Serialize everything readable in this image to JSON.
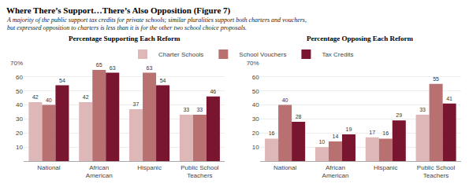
{
  "title": "Where There’s Support…There’s Also Opposition (Figure 7)",
  "subtitle": "A majority of the public support tax credits for private schools; similar pluralities support both charters and vouchers,\nbut expressed opposition to charters is less than it is for the other two school choice proposals.",
  "chart_data": [
    {
      "type": "bar",
      "title": "Percentage Supporting Each Reform",
      "categories": [
        "National",
        "African\nAmerican",
        "Hispanic",
        "Public School\nTeachers"
      ],
      "series": [
        {
          "name": "Charter Schools",
          "color": "#deb8b8",
          "values": [
            42,
            42,
            37,
            33
          ]
        },
        {
          "name": "School Vouchers",
          "color": "#b87070",
          "values": [
            40,
            65,
            63,
            33
          ]
        },
        {
          "name": "Tax Credits",
          "color": "#7a1530",
          "values": [
            54,
            63,
            54,
            46
          ]
        }
      ],
      "ylim": [
        0,
        70
      ],
      "yticks": [
        10,
        20,
        30,
        40,
        50,
        60,
        {
          "value": 70,
          "label": "70%"
        }
      ],
      "grid": true,
      "data_labels": true,
      "legend": "top"
    },
    {
      "type": "bar",
      "title": "Percentage Opposing Each Reform",
      "categories": [
        "National",
        "African\nAmerican",
        "Hispanic",
        "Public School\nTeachers"
      ],
      "series": [
        {
          "name": "Charter Schools",
          "color": "#deb8b8",
          "values": [
            16,
            10,
            17,
            33
          ]
        },
        {
          "name": "School Vouchers",
          "color": "#b87070",
          "values": [
            40,
            14,
            16,
            55
          ]
        },
        {
          "name": "Tax Credits",
          "color": "#7a1530",
          "values": [
            28,
            19,
            29,
            41
          ]
        }
      ],
      "ylim": [
        0,
        70
      ],
      "yticks": [
        10,
        20,
        30,
        40,
        50,
        60,
        {
          "value": 70,
          "label": "70%"
        }
      ],
      "grid": true,
      "data_labels": true
    }
  ]
}
